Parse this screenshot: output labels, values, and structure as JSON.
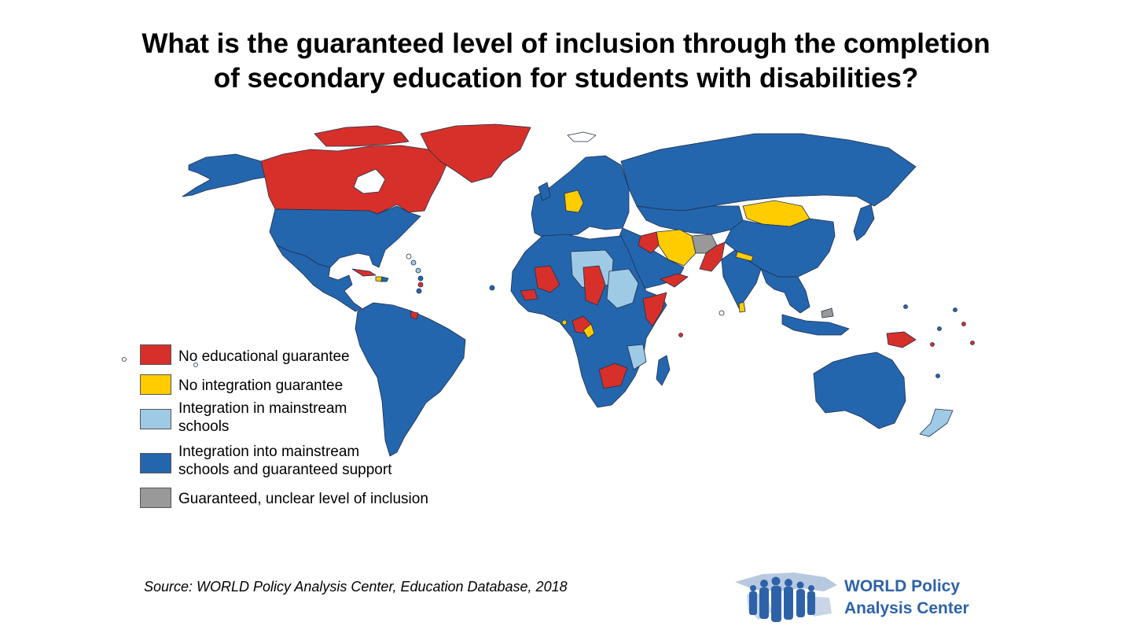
{
  "title": {
    "line1": "What is the guaranteed level of inclusion through the completion",
    "line2": "of secondary education for students with disabilities?"
  },
  "colors": {
    "no_educational_guarantee": "#d7302a",
    "no_integration_guarantee": "#ffcc00",
    "integration_mainstream": "#9ecae6",
    "integration_support": "#2466ae",
    "unclear": "#999999"
  },
  "legend": [
    {
      "key": "no_educational_guarantee",
      "label": "No educational guarantee"
    },
    {
      "key": "no_integration_guarantee",
      "label": "No integration guarantee"
    },
    {
      "key": "integration_mainstream",
      "label_lines": [
        "Integration in mainstream",
        "schools"
      ]
    },
    {
      "key": "integration_support",
      "label_lines": [
        "Integration into mainstream",
        "schools and guaranteed support"
      ]
    },
    {
      "key": "unclear",
      "label": "Guaranteed, unclear level of inclusion"
    }
  ],
  "source": "Source: WORLD Policy Analysis Center, Education Database, 2018",
  "logo": {
    "line1": "WORLD Policy",
    "line2": "Analysis Center"
  }
}
